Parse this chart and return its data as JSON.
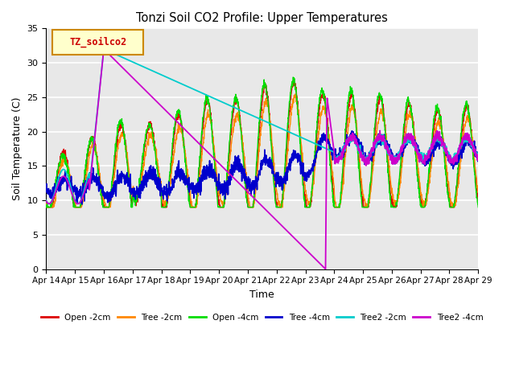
{
  "title": "Tonzi Soil CO2 Profile: Upper Temperatures",
  "xlabel": "Time",
  "ylabel": "Soil Temperature (C)",
  "ylim": [
    0,
    35
  ],
  "xlim": [
    0,
    15
  ],
  "xtick_labels": [
    "Apr 14",
    "Apr 15",
    "Apr 16",
    "Apr 17",
    "Apr 18",
    "Apr 19",
    "Apr 20",
    "Apr 21",
    "Apr 22",
    "Apr 23",
    "Apr 24",
    "Apr 25",
    "Apr 26",
    "Apr 27",
    "Apr 28",
    "Apr 29"
  ],
  "ytick_vals": [
    0,
    5,
    10,
    15,
    20,
    25,
    30,
    35
  ],
  "legend_label": "TZ_soilco2",
  "series_colors": {
    "Open -2cm": "#dd0000",
    "Tree -2cm": "#ff8800",
    "Open -4cm": "#00dd00",
    "Tree -4cm": "#0000cc",
    "Tree2 -2cm": "#00cccc",
    "Tree2 -4cm": "#cc00cc"
  },
  "bg_color": "#e8e8e8",
  "grid_color": "#ffffff",
  "n_days": 15,
  "pts_per_day": 144
}
